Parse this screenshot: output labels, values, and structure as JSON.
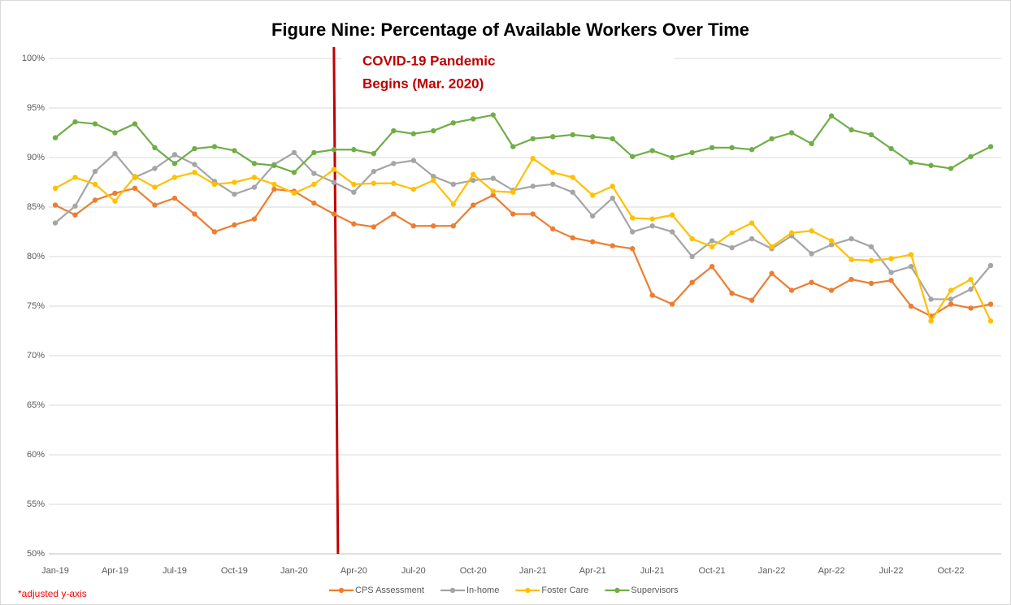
{
  "chart_data": {
    "type": "line",
    "title": "Figure Nine: Percentage of Available Workers Over Time",
    "categories": [
      "Jan-19",
      null,
      null,
      "Apr-19",
      null,
      null,
      "Jul-19",
      null,
      null,
      "Oct-19",
      null,
      null,
      "Jan-20",
      null,
      null,
      "Apr-20",
      null,
      null,
      "Jul-20",
      null,
      null,
      "Oct-20",
      null,
      null,
      "Jan-21",
      null,
      null,
      "Apr-21",
      null,
      null,
      "Jul-21",
      null,
      null,
      "Oct-21",
      null,
      null,
      "Jan-22",
      null,
      null,
      "Apr-22",
      null,
      null,
      "Jul-22",
      null,
      null,
      "Oct-22",
      null,
      null
    ],
    "series": [
      {
        "name": "CPS Assessment",
        "color": "#ed7d31",
        "values": [
          85.2,
          84.2,
          85.7,
          86.4,
          86.9,
          85.2,
          85.9,
          84.3,
          82.5,
          83.2,
          83.8,
          86.8,
          86.6,
          85.4,
          84.3,
          83.3,
          83.0,
          84.3,
          83.1,
          83.1,
          83.1,
          85.2,
          86.2,
          84.3,
          84.3,
          82.8,
          81.9,
          81.5,
          81.1,
          80.8,
          76.1,
          75.2,
          77.4,
          79.0,
          76.3,
          75.6,
          78.3,
          76.6,
          77.4,
          76.6,
          77.7,
          77.3,
          77.6,
          75.0,
          74.0,
          75.2,
          74.8,
          75.2
        ]
      },
      {
        "name": "In-home",
        "color": "#a5a5a5",
        "values": [
          83.4,
          85.1,
          88.6,
          90.4,
          88.0,
          88.9,
          90.3,
          89.3,
          87.6,
          86.3,
          87.0,
          89.3,
          90.5,
          88.4,
          87.5,
          86.5,
          88.6,
          89.4,
          89.7,
          88.1,
          87.3,
          87.7,
          87.9,
          86.7,
          87.1,
          87.3,
          86.5,
          84.1,
          85.9,
          82.5,
          83.1,
          82.5,
          80.0,
          81.6,
          80.9,
          81.8,
          80.8,
          82.1,
          80.3,
          81.2,
          81.8,
          81.0,
          78.4,
          79.0,
          75.7,
          75.7,
          76.7,
          79.1
        ]
      },
      {
        "name": "Foster Care",
        "color": "#ffc000",
        "values": [
          86.9,
          88.0,
          87.3,
          85.6,
          88.1,
          87.0,
          88.0,
          88.5,
          87.3,
          87.5,
          88.0,
          87.3,
          86.4,
          87.3,
          88.8,
          87.3,
          87.4,
          87.4,
          86.8,
          87.7,
          85.3,
          88.3,
          86.6,
          86.5,
          89.9,
          88.5,
          88.0,
          86.2,
          87.1,
          83.9,
          83.8,
          84.2,
          81.8,
          81.0,
          82.4,
          83.4,
          81.0,
          82.4,
          82.6,
          81.6,
          79.7,
          79.6,
          79.8,
          80.2,
          73.5,
          76.6,
          77.7,
          73.5
        ]
      },
      {
        "name": "Supervisors",
        "color": "#70ad47",
        "values": [
          92.0,
          93.6,
          93.4,
          92.5,
          93.4,
          91.0,
          89.4,
          90.9,
          91.1,
          90.7,
          89.4,
          89.2,
          88.5,
          90.5,
          90.8,
          90.8,
          90.4,
          92.7,
          92.4,
          92.7,
          93.5,
          93.9,
          94.3,
          91.1,
          91.9,
          92.1,
          92.3,
          92.1,
          91.9,
          90.1,
          90.7,
          90.0,
          90.5,
          91.0,
          91.0,
          90.8,
          91.9,
          92.5,
          91.4,
          94.2,
          92.8,
          92.3,
          90.9,
          89.5,
          89.2,
          88.9,
          90.1,
          91.1
        ]
      }
    ],
    "ylim": [
      50,
      100
    ],
    "yticks": [
      {
        "value": 50,
        "label": "50%"
      },
      {
        "value": 55,
        "label": "55%"
      },
      {
        "value": 60,
        "label": "60%"
      },
      {
        "value": 65,
        "label": "65%"
      },
      {
        "value": 70,
        "label": "70%"
      },
      {
        "value": 75,
        "label": "75%"
      },
      {
        "value": 80,
        "label": "80%"
      },
      {
        "value": 85,
        "label": "85%"
      },
      {
        "value": 90,
        "label": "90%"
      },
      {
        "value": 95,
        "label": "95%"
      },
      {
        "value": 100,
        "label": "100%"
      }
    ],
    "grid": true,
    "legend": "bottom",
    "annotation": {
      "lines": [
        "COVID-19 Pandemic",
        "Begins (Mar. 2020)"
      ],
      "index": 14,
      "color": "#c00000"
    },
    "footnote": "*adjusted y-axis"
  }
}
